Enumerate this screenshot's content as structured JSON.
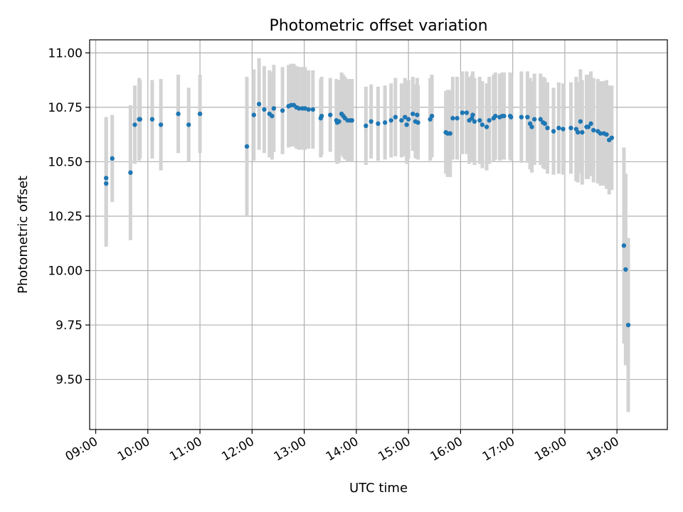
{
  "chart_data": {
    "type": "scatter",
    "title": "Photometric offset variation",
    "xlabel": "UTC time",
    "ylabel": "Photometric offset",
    "xlim": [
      "08:53",
      "19:58"
    ],
    "ylim": [
      9.27,
      11.06
    ],
    "x_ticks": [
      "09:00",
      "10:00",
      "11:00",
      "12:00",
      "13:00",
      "14:00",
      "15:00",
      "16:00",
      "17:00",
      "18:00",
      "19:00"
    ],
    "y_ticks": [
      "9.50",
      "9.75",
      "10.00",
      "10.25",
      "10.50",
      "10.75",
      "11.00"
    ],
    "grid": true,
    "errorbar_color": "#d3d3d3",
    "marker_color": "#1f77b4",
    "points": [
      {
        "x": "09:12",
        "y": 10.425,
        "err": 0.28
      },
      {
        "x": "09:12",
        "y": 10.4,
        "err": 0.29
      },
      {
        "x": "09:19",
        "y": 10.515,
        "err": 0.2
      },
      {
        "x": "09:40",
        "y": 10.45,
        "err": 0.31
      },
      {
        "x": "09:45",
        "y": 10.67,
        "err": 0.18
      },
      {
        "x": "09:50",
        "y": 10.695,
        "err": 0.19
      },
      {
        "x": "09:51",
        "y": 10.695,
        "err": 0.18
      },
      {
        "x": "10:05",
        "y": 10.695,
        "err": 0.18
      },
      {
        "x": "10:15",
        "y": 10.67,
        "err": 0.21
      },
      {
        "x": "10:35",
        "y": 10.72,
        "err": 0.18
      },
      {
        "x": "10:47",
        "y": 10.67,
        "err": 0.17
      },
      {
        "x": "11:00",
        "y": 10.72,
        "err": 0.18
      },
      {
        "x": "11:54",
        "y": 10.57,
        "err": 0.32
      },
      {
        "x": "12:02",
        "y": 10.715,
        "err": 0.21
      },
      {
        "x": "12:08",
        "y": 10.765,
        "err": 0.21
      },
      {
        "x": "12:14",
        "y": 10.74,
        "err": 0.2
      },
      {
        "x": "12:20",
        "y": 10.72,
        "err": 0.2
      },
      {
        "x": "12:23",
        "y": 10.71,
        "err": 0.2
      },
      {
        "x": "12:25",
        "y": 10.745,
        "err": 0.2
      },
      {
        "x": "12:35",
        "y": 10.735,
        "err": 0.2
      },
      {
        "x": "12:42",
        "y": 10.755,
        "err": 0.19
      },
      {
        "x": "12:45",
        "y": 10.76,
        "err": 0.19
      },
      {
        "x": "12:48",
        "y": 10.76,
        "err": 0.19
      },
      {
        "x": "12:51",
        "y": 10.75,
        "err": 0.19
      },
      {
        "x": "12:54",
        "y": 10.745,
        "err": 0.19
      },
      {
        "x": "12:58",
        "y": 10.745,
        "err": 0.19
      },
      {
        "x": "13:01",
        "y": 10.745,
        "err": 0.19
      },
      {
        "x": "13:05",
        "y": 10.74,
        "err": 0.18
      },
      {
        "x": "13:10",
        "y": 10.74,
        "err": 0.18
      },
      {
        "x": "13:19",
        "y": 10.7,
        "err": 0.18
      },
      {
        "x": "13:20",
        "y": 10.71,
        "err": 0.18
      },
      {
        "x": "13:30",
        "y": 10.715,
        "err": 0.17
      },
      {
        "x": "13:37",
        "y": 10.69,
        "err": 0.19
      },
      {
        "x": "13:38",
        "y": 10.68,
        "err": 0.19
      },
      {
        "x": "13:40",
        "y": 10.685,
        "err": 0.19
      },
      {
        "x": "13:43",
        "y": 10.72,
        "err": 0.19
      },
      {
        "x": "13:45",
        "y": 10.71,
        "err": 0.19
      },
      {
        "x": "13:47",
        "y": 10.7,
        "err": 0.19
      },
      {
        "x": "13:50",
        "y": 10.69,
        "err": 0.19
      },
      {
        "x": "13:53",
        "y": 10.69,
        "err": 0.19
      },
      {
        "x": "13:55",
        "y": 10.69,
        "err": 0.19
      },
      {
        "x": "14:11",
        "y": 10.665,
        "err": 0.18
      },
      {
        "x": "14:17",
        "y": 10.685,
        "err": 0.17
      },
      {
        "x": "14:25",
        "y": 10.675,
        "err": 0.17
      },
      {
        "x": "14:33",
        "y": 10.68,
        "err": 0.17
      },
      {
        "x": "14:40",
        "y": 10.69,
        "err": 0.17
      },
      {
        "x": "14:45",
        "y": 10.705,
        "err": 0.18
      },
      {
        "x": "14:52",
        "y": 10.69,
        "err": 0.17
      },
      {
        "x": "14:56",
        "y": 10.705,
        "err": 0.18
      },
      {
        "x": "14:58",
        "y": 10.67,
        "err": 0.18
      },
      {
        "x": "15:00",
        "y": 10.695,
        "err": 0.18
      },
      {
        "x": "15:05",
        "y": 10.72,
        "err": 0.17
      },
      {
        "x": "15:08",
        "y": 10.685,
        "err": 0.17
      },
      {
        "x": "15:10",
        "y": 10.715,
        "err": 0.17
      },
      {
        "x": "15:11",
        "y": 10.68,
        "err": 0.17
      },
      {
        "x": "15:25",
        "y": 10.695,
        "err": 0.19
      },
      {
        "x": "15:27",
        "y": 10.71,
        "err": 0.19
      },
      {
        "x": "15:43",
        "y": 10.635,
        "err": 0.19
      },
      {
        "x": "15:45",
        "y": 10.63,
        "err": 0.2
      },
      {
        "x": "15:48",
        "y": 10.63,
        "err": 0.2
      },
      {
        "x": "15:51",
        "y": 10.7,
        "err": 0.19
      },
      {
        "x": "15:56",
        "y": 10.7,
        "err": 0.19
      },
      {
        "x": "16:02",
        "y": 10.725,
        "err": 0.19
      },
      {
        "x": "16:07",
        "y": 10.725,
        "err": 0.19
      },
      {
        "x": "16:10",
        "y": 10.69,
        "err": 0.2
      },
      {
        "x": "16:13",
        "y": 10.7,
        "err": 0.2
      },
      {
        "x": "16:14",
        "y": 10.715,
        "err": 0.2
      },
      {
        "x": "16:16",
        "y": 10.685,
        "err": 0.2
      },
      {
        "x": "16:22",
        "y": 10.69,
        "err": 0.2
      },
      {
        "x": "16:25",
        "y": 10.67,
        "err": 0.2
      },
      {
        "x": "16:30",
        "y": 10.66,
        "err": 0.2
      },
      {
        "x": "16:33",
        "y": 10.69,
        "err": 0.2
      },
      {
        "x": "16:38",
        "y": 10.7,
        "err": 0.2
      },
      {
        "x": "16:40",
        "y": 10.71,
        "err": 0.2
      },
      {
        "x": "16:45",
        "y": 10.705,
        "err": 0.2
      },
      {
        "x": "16:48",
        "y": 10.71,
        "err": 0.2
      },
      {
        "x": "16:50",
        "y": 10.71,
        "err": 0.2
      },
      {
        "x": "16:57",
        "y": 10.71,
        "err": 0.2
      },
      {
        "x": "16:58",
        "y": 10.705,
        "err": 0.2
      },
      {
        "x": "17:10",
        "y": 10.705,
        "err": 0.21
      },
      {
        "x": "17:17",
        "y": 10.705,
        "err": 0.21
      },
      {
        "x": "17:20",
        "y": 10.675,
        "err": 0.21
      },
      {
        "x": "17:22",
        "y": 10.66,
        "err": 0.21
      },
      {
        "x": "17:25",
        "y": 10.695,
        "err": 0.21
      },
      {
        "x": "17:32",
        "y": 10.695,
        "err": 0.21
      },
      {
        "x": "17:35",
        "y": 10.68,
        "err": 0.21
      },
      {
        "x": "17:37",
        "y": 10.675,
        "err": 0.21
      },
      {
        "x": "17:40",
        "y": 10.655,
        "err": 0.21
      },
      {
        "x": "17:47",
        "y": 10.64,
        "err": 0.2
      },
      {
        "x": "17:53",
        "y": 10.655,
        "err": 0.21
      },
      {
        "x": "17:58",
        "y": 10.65,
        "err": 0.21
      },
      {
        "x": "18:07",
        "y": 10.655,
        "err": 0.21
      },
      {
        "x": "18:13",
        "y": 10.65,
        "err": 0.24
      },
      {
        "x": "18:15",
        "y": 10.635,
        "err": 0.23
      },
      {
        "x": "18:18",
        "y": 10.685,
        "err": 0.24
      },
      {
        "x": "18:20",
        "y": 10.635,
        "err": 0.24
      },
      {
        "x": "18:25",
        "y": 10.66,
        "err": 0.24
      },
      {
        "x": "18:27",
        "y": 10.66,
        "err": 0.24
      },
      {
        "x": "18:30",
        "y": 10.675,
        "err": 0.24
      },
      {
        "x": "18:33",
        "y": 10.645,
        "err": 0.24
      },
      {
        "x": "18:38",
        "y": 10.64,
        "err": 0.24
      },
      {
        "x": "18:41",
        "y": 10.63,
        "err": 0.24
      },
      {
        "x": "18:45",
        "y": 10.63,
        "err": 0.24
      },
      {
        "x": "18:48",
        "y": 10.625,
        "err": 0.25
      },
      {
        "x": "18:51",
        "y": 10.6,
        "err": 0.25
      },
      {
        "x": "18:54",
        "y": 10.61,
        "err": 0.24
      },
      {
        "x": "19:08",
        "y": 10.115,
        "err": 0.45
      },
      {
        "x": "19:10",
        "y": 10.005,
        "err": 0.44
      },
      {
        "x": "19:13",
        "y": 9.75,
        "err": 0.4
      }
    ]
  }
}
